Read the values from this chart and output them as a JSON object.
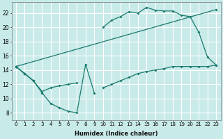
{
  "xlabel": "Humidex (Indice chaleur)",
  "bg_color": "#c8eae8",
  "grid_color": "#ffffff",
  "line_color": "#1a7a6e",
  "x_ticks": [
    0,
    1,
    2,
    3,
    4,
    5,
    6,
    7,
    8,
    9,
    10,
    11,
    12,
    13,
    14,
    15,
    16,
    17,
    18,
    19,
    20,
    21,
    22,
    23
  ],
  "xlim": [
    -0.5,
    23.5
  ],
  "ylim": [
    7,
    23.5
  ],
  "y_ticks": [
    8,
    10,
    12,
    14,
    16,
    18,
    20,
    22
  ],
  "series": [
    {
      "x": [
        0,
        1,
        2,
        3,
        4,
        5,
        6,
        7,
        8,
        9,
        10,
        11,
        12,
        13,
        14,
        15,
        16,
        17,
        18,
        19,
        20,
        21,
        22,
        23
      ],
      "y": [
        14.5,
        13.5,
        12.5,
        10.8,
        9.3,
        8.7,
        8.2,
        8.0,
        14.8,
        10.8,
        null,
        null,
        null,
        null,
        null,
        null,
        null,
        null,
        null,
        null,
        null,
        null,
        null,
        null
      ]
    },
    {
      "x": [
        0,
        1,
        2,
        3,
        4,
        5,
        6,
        7,
        8,
        9,
        10,
        11,
        12,
        13,
        14,
        15,
        16,
        17,
        18,
        19,
        20,
        21,
        22,
        23
      ],
      "y": [
        14.5,
        13.5,
        12.5,
        11.0,
        11.5,
        11.8,
        12.0,
        12.2,
        null,
        null,
        11.5,
        12.0,
        12.5,
        13.0,
        13.5,
        13.8,
        14.0,
        14.2,
        14.5,
        14.5,
        14.5,
        14.5,
        14.5,
        14.7
      ]
    },
    {
      "x": [
        0,
        1,
        2,
        3,
        4,
        5,
        6,
        7,
        8,
        9,
        10,
        11,
        12,
        13,
        14,
        15,
        16,
        17,
        18,
        19,
        20,
        21,
        22,
        23
      ],
      "y": [
        14.5,
        13.5,
        12.5,
        null,
        null,
        null,
        null,
        null,
        null,
        null,
        20.0,
        21.0,
        21.5,
        22.2,
        22.0,
        22.8,
        22.4,
        22.3,
        22.3,
        21.7,
        21.5,
        19.3,
        15.8,
        14.7
      ]
    },
    {
      "x": [
        0,
        23
      ],
      "y": [
        14.5,
        22.5
      ]
    }
  ]
}
